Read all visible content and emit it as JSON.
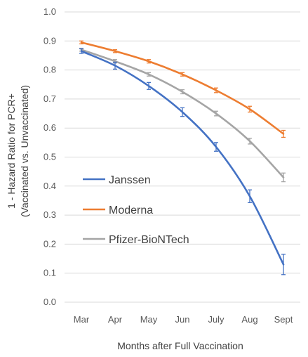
{
  "chart_data": {
    "type": "line",
    "categories": [
      "Mar",
      "Apr",
      "May",
      "Jun",
      "July",
      "Aug",
      "Sept"
    ],
    "ylim": [
      0.0,
      1.0
    ],
    "yticks": [
      "0.0",
      "0.1",
      "0.2",
      "0.3",
      "0.4",
      "0.5",
      "0.6",
      "0.7",
      "0.8",
      "0.9",
      "1.0"
    ],
    "xlabel": "Months after Full Vaccination",
    "ylabel_line1": "1 - Hazard Ratio for PCR+",
    "ylabel_line2": "(Vaccinated vs. Unvaccinated)",
    "grid": true,
    "legend_position": "lower-left",
    "series": [
      {
        "name": "Janssen",
        "color": "#4472C4",
        "values": [
          0.865,
          0.815,
          0.745,
          0.655,
          0.535,
          0.365,
          0.13
        ],
        "err": [
          0.008,
          0.012,
          0.012,
          0.015,
          0.015,
          0.022,
          0.035
        ]
      },
      {
        "name": "Moderna",
        "color": "#ED7D31",
        "values": [
          0.895,
          0.865,
          0.83,
          0.785,
          0.73,
          0.665,
          0.58
        ],
        "err": [
          0.005,
          0.005,
          0.006,
          0.006,
          0.008,
          0.01,
          0.012
        ]
      },
      {
        "name": "Pfizer-BioNTech",
        "color": "#A5A5A5",
        "values": [
          0.87,
          0.83,
          0.785,
          0.725,
          0.65,
          0.555,
          0.43
        ],
        "err": [
          0.005,
          0.006,
          0.006,
          0.007,
          0.008,
          0.01,
          0.015
        ]
      }
    ]
  }
}
